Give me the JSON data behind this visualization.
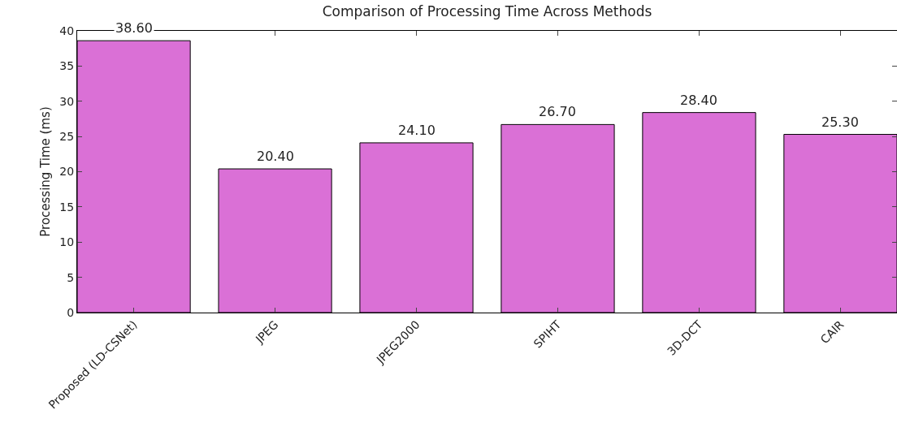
{
  "chart_data": {
    "type": "bar",
    "title": "Comparison of Processing Time Across Methods",
    "ylabel": "Processing Time (ms)",
    "categories": [
      "Proposed (LD-CSNet)",
      "JPEG",
      "JPEG2000",
      "SPIHT",
      "3D-DCT",
      "CAIR"
    ],
    "values": [
      38.6,
      20.4,
      24.1,
      26.7,
      28.4,
      25.3
    ],
    "value_labels": [
      "38.60",
      "20.40",
      "24.10",
      "26.70",
      "28.40",
      "25.30"
    ],
    "color": "#da70d6",
    "ylim": [
      0,
      40
    ],
    "yticks": [
      0,
      5,
      10,
      15,
      20,
      25,
      30,
      35,
      40
    ],
    "grid": false
  }
}
